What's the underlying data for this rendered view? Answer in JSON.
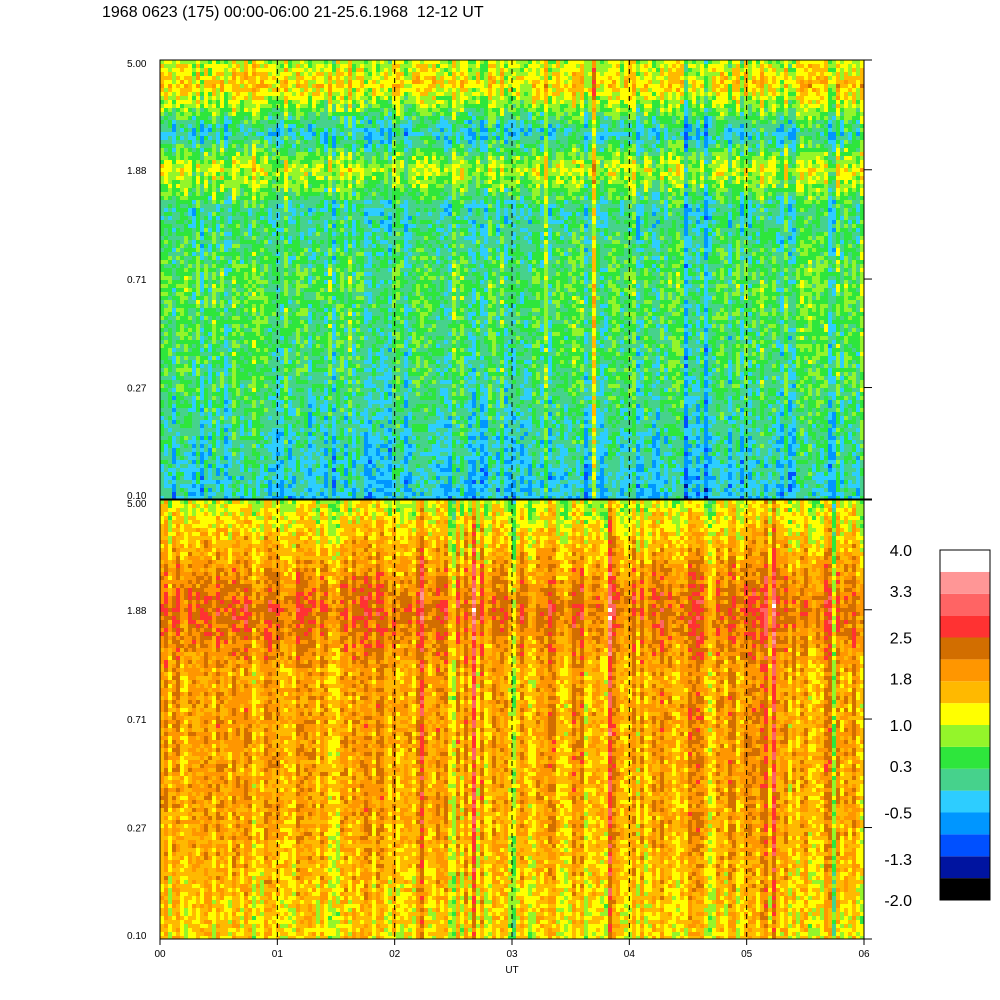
{
  "title": "1968 0623 (175) 00:00-06:00 21-25.6.1968  12-12 UT",
  "chart_data": {
    "type": "heatmap",
    "title": "1968 0623 (175) 00:00-06:00 21-25.6.1968  12-12 UT",
    "xlabel": "UT",
    "ylabel": "",
    "x_ticks": [
      "00",
      "01",
      "02",
      "03",
      "04",
      "05",
      "06"
    ],
    "xlim": [
      0,
      6
    ],
    "y_scale": "log",
    "ylim": [
      0.1,
      5.0
    ],
    "y_ticks": [
      "0.10",
      "0.27",
      "0.71",
      "1.88",
      "5.00"
    ],
    "grid": "dashed vertical lines at each hour",
    "panels": [
      {
        "name": "",
        "description": "mostly green/cyan with yellow band near 1.88 and blue dropouts",
        "band_levels": [
          {
            "y": 5.0,
            "level": 0.9
          },
          {
            "y": 4.0,
            "level": 1.4
          },
          {
            "y": 2.6,
            "level": -0.2
          },
          {
            "y": 1.88,
            "level": 1.0
          },
          {
            "y": 1.3,
            "level": 0.0
          },
          {
            "y": 0.71,
            "level": 0.4
          },
          {
            "y": 0.27,
            "level": 0.2
          },
          {
            "y": 0.1,
            "level": -0.3
          }
        ]
      },
      {
        "name": "",
        "description": "mostly yellow/orange with dark orange band near 1.88",
        "band_levels": [
          {
            "y": 5.0,
            "level": 1.0
          },
          {
            "y": 3.0,
            "level": 1.7
          },
          {
            "y": 1.88,
            "level": 2.3
          },
          {
            "y": 1.0,
            "level": 1.7
          },
          {
            "y": 0.71,
            "level": 1.8
          },
          {
            "y": 0.27,
            "level": 1.7
          },
          {
            "y": 0.1,
            "level": 1.3
          }
        ]
      }
    ],
    "colorbar": {
      "labels": [
        "4.0",
        "3.3",
        "2.5",
        "1.8",
        "1.0",
        "0.3",
        "-0.5",
        "-1.3",
        "-2.0"
      ],
      "min": -2.0,
      "max": 4.0,
      "colors": [
        "#000000",
        "#0014a0",
        "#0050ff",
        "#0096ff",
        "#2dcdff",
        "#46d28c",
        "#2ee63c",
        "#94f52a",
        "#ffff00",
        "#ffb900",
        "#ff9600",
        "#d26e00",
        "#ff3232",
        "#ff6464",
        "#ff9696",
        "#ffffff"
      ]
    }
  }
}
